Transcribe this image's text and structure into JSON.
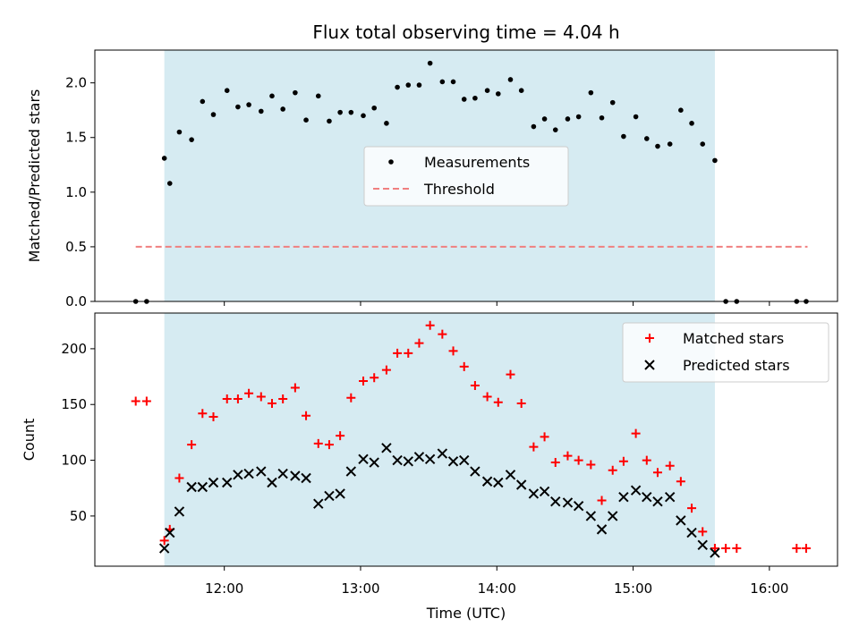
{
  "chart_data": {
    "type": "scatter",
    "title": "Flux total observing time = 4.04 h",
    "xlabel": "Time (UTC)",
    "x_unit": "hours UTC",
    "x_range": [
      11.05,
      16.5
    ],
    "x_ticks": [
      {
        "value": 12,
        "label": "12:00"
      },
      {
        "value": 13,
        "label": "13:00"
      },
      {
        "value": 14,
        "label": "14:00"
      },
      {
        "value": 15,
        "label": "15:00"
      },
      {
        "value": 16,
        "label": "16:00"
      }
    ],
    "shaded_interval": {
      "start": 11.56,
      "end": 15.6,
      "color": "#add8e6"
    },
    "panels": [
      {
        "ylabel": "Matched/Predicted stars",
        "ylim": [
          0,
          2.3
        ],
        "y_ticks": [
          {
            "value": 0,
            "label": "0.0"
          },
          {
            "value": 0.5,
            "label": "0.5"
          },
          {
            "value": 1.0,
            "label": "1.0"
          },
          {
            "value": 1.5,
            "label": "1.5"
          },
          {
            "value": 2.0,
            "label": "2.0"
          }
        ],
        "legend": {
          "position": "center",
          "entries": [
            "Measurements",
            "Threshold"
          ]
        },
        "threshold": {
          "name": "Threshold",
          "value": 0.5,
          "x_start": 11.35,
          "x_end": 16.28,
          "color": "#f08080",
          "style": "dashed"
        },
        "series": [
          {
            "name": "Measurements",
            "marker": "dot",
            "color": "#000000",
            "points": [
              [
                11.35,
                0
              ],
              [
                11.43,
                0
              ],
              [
                11.56,
                1.31
              ],
              [
                11.6,
                1.08
              ],
              [
                11.67,
                1.55
              ],
              [
                11.76,
                1.48
              ],
              [
                11.84,
                1.83
              ],
              [
                11.92,
                1.71
              ],
              [
                12.02,
                1.93
              ],
              [
                12.1,
                1.78
              ],
              [
                12.18,
                1.8
              ],
              [
                12.27,
                1.74
              ],
              [
                12.35,
                1.88
              ],
              [
                12.43,
                1.76
              ],
              [
                12.52,
                1.91
              ],
              [
                12.6,
                1.66
              ],
              [
                12.69,
                1.88
              ],
              [
                12.77,
                1.65
              ],
              [
                12.85,
                1.73
              ],
              [
                12.93,
                1.73
              ],
              [
                13.02,
                1.7
              ],
              [
                13.1,
                1.77
              ],
              [
                13.19,
                1.63
              ],
              [
                13.27,
                1.96
              ],
              [
                13.35,
                1.98
              ],
              [
                13.43,
                1.98
              ],
              [
                13.51,
                2.18
              ],
              [
                13.6,
                2.01
              ],
              [
                13.68,
                2.01
              ],
              [
                13.76,
                1.85
              ],
              [
                13.84,
                1.86
              ],
              [
                13.93,
                1.93
              ],
              [
                14.01,
                1.9
              ],
              [
                14.1,
                2.03
              ],
              [
                14.18,
                1.93
              ],
              [
                14.27,
                1.6
              ],
              [
                14.35,
                1.67
              ],
              [
                14.43,
                1.57
              ],
              [
                14.52,
                1.67
              ],
              [
                14.6,
                1.69
              ],
              [
                14.69,
                1.91
              ],
              [
                14.77,
                1.68
              ],
              [
                14.85,
                1.82
              ],
              [
                14.93,
                1.51
              ],
              [
                15.02,
                1.69
              ],
              [
                15.1,
                1.49
              ],
              [
                15.18,
                1.42
              ],
              [
                15.27,
                1.44
              ],
              [
                15.35,
                1.75
              ],
              [
                15.43,
                1.63
              ],
              [
                15.51,
                1.44
              ],
              [
                15.6,
                1.29
              ],
              [
                15.68,
                0
              ],
              [
                15.76,
                0
              ],
              [
                16.2,
                0
              ],
              [
                16.27,
                0
              ]
            ]
          }
        ]
      },
      {
        "ylabel": "Count",
        "ylim": [
          5,
          232
        ],
        "y_ticks": [
          {
            "value": 50,
            "label": "50"
          },
          {
            "value": 100,
            "label": "100"
          },
          {
            "value": 150,
            "label": "150"
          },
          {
            "value": 200,
            "label": "200"
          }
        ],
        "legend": {
          "position": "top-right",
          "entries": [
            "Matched stars",
            "Predicted stars"
          ]
        },
        "series": [
          {
            "name": "Matched stars",
            "marker": "plus",
            "color": "#ff0000",
            "points": [
              [
                11.35,
                153
              ],
              [
                11.43,
                153
              ],
              [
                11.56,
                28
              ],
              [
                11.6,
                38
              ],
              [
                11.67,
                84
              ],
              [
                11.76,
                114
              ],
              [
                11.84,
                142
              ],
              [
                11.92,
                139
              ],
              [
                12.02,
                155
              ],
              [
                12.1,
                155
              ],
              [
                12.18,
                160
              ],
              [
                12.27,
                157
              ],
              [
                12.35,
                151
              ],
              [
                12.43,
                155
              ],
              [
                12.52,
                165
              ],
              [
                12.6,
                140
              ],
              [
                12.69,
                115
              ],
              [
                12.77,
                114
              ],
              [
                12.85,
                122
              ],
              [
                12.93,
                156
              ],
              [
                13.02,
                171
              ],
              [
                13.1,
                174
              ],
              [
                13.19,
                181
              ],
              [
                13.27,
                196
              ],
              [
                13.35,
                196
              ],
              [
                13.43,
                205
              ],
              [
                13.51,
                221
              ],
              [
                13.6,
                213
              ],
              [
                13.68,
                198
              ],
              [
                13.76,
                184
              ],
              [
                13.84,
                167
              ],
              [
                13.93,
                157
              ],
              [
                14.01,
                152
              ],
              [
                14.1,
                177
              ],
              [
                14.18,
                151
              ],
              [
                14.27,
                112
              ],
              [
                14.35,
                121
              ],
              [
                14.43,
                98
              ],
              [
                14.52,
                104
              ],
              [
                14.6,
                100
              ],
              [
                14.69,
                96
              ],
              [
                14.77,
                64
              ],
              [
                14.85,
                91
              ],
              [
                14.93,
                99
              ],
              [
                15.02,
                124
              ],
              [
                15.1,
                100
              ],
              [
                15.18,
                89
              ],
              [
                15.27,
                95
              ],
              [
                15.35,
                81
              ],
              [
                15.43,
                57
              ],
              [
                15.51,
                36
              ],
              [
                15.6,
                21
              ],
              [
                15.68,
                21
              ],
              [
                15.76,
                21
              ],
              [
                16.2,
                21
              ],
              [
                16.27,
                21
              ]
            ]
          },
          {
            "name": "Predicted stars",
            "marker": "x",
            "color": "#000000",
            "points": [
              [
                11.56,
                21
              ],
              [
                11.6,
                35
              ],
              [
                11.67,
                54
              ],
              [
                11.76,
                76
              ],
              [
                11.84,
                76
              ],
              [
                11.92,
                80
              ],
              [
                12.02,
                80
              ],
              [
                12.1,
                87
              ],
              [
                12.18,
                88
              ],
              [
                12.27,
                90
              ],
              [
                12.35,
                80
              ],
              [
                12.43,
                88
              ],
              [
                12.52,
                86
              ],
              [
                12.6,
                84
              ],
              [
                12.69,
                61
              ],
              [
                12.77,
                68
              ],
              [
                12.85,
                70
              ],
              [
                12.93,
                90
              ],
              [
                13.02,
                101
              ],
              [
                13.1,
                98
              ],
              [
                13.19,
                111
              ],
              [
                13.27,
                100
              ],
              [
                13.35,
                99
              ],
              [
                13.43,
                103
              ],
              [
                13.51,
                101
              ],
              [
                13.6,
                106
              ],
              [
                13.68,
                99
              ],
              [
                13.76,
                100
              ],
              [
                13.84,
                90
              ],
              [
                13.93,
                81
              ],
              [
                14.01,
                80
              ],
              [
                14.1,
                87
              ],
              [
                14.18,
                78
              ],
              [
                14.27,
                70
              ],
              [
                14.35,
                72
              ],
              [
                14.43,
                63
              ],
              [
                14.52,
                62
              ],
              [
                14.6,
                59
              ],
              [
                14.69,
                50
              ],
              [
                14.77,
                38
              ],
              [
                14.85,
                50
              ],
              [
                14.93,
                67
              ],
              [
                15.02,
                73
              ],
              [
                15.1,
                67
              ],
              [
                15.18,
                63
              ],
              [
                15.27,
                67
              ],
              [
                15.35,
                46
              ],
              [
                15.43,
                35
              ],
              [
                15.51,
                24
              ],
              [
                15.6,
                17
              ]
            ]
          }
        ]
      }
    ]
  }
}
